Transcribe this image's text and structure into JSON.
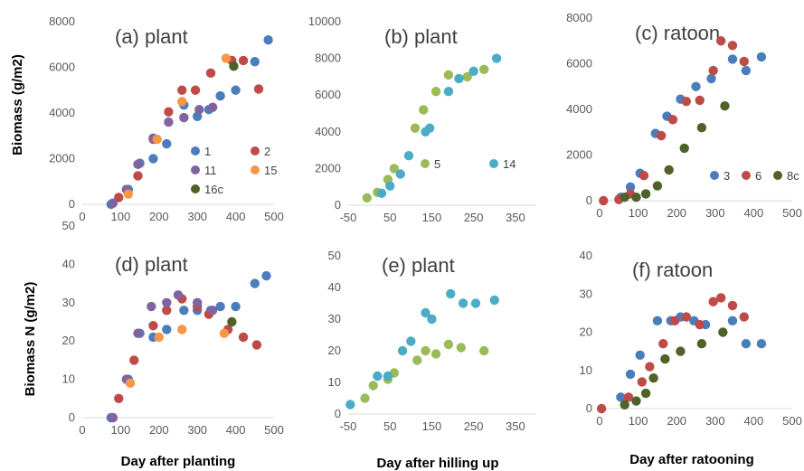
{
  "y_labels": {
    "top": "Biomass (g/m2)",
    "bottom": "Biomass N (g/m2)"
  },
  "x_labels": [
    "Day after planting",
    "Day after hilling up",
    "Day after ratooning"
  ],
  "colors": {
    "1": "#4a7ebb",
    "2": "#be4b48",
    "11": "#8064a2",
    "15": "#f79646",
    "16c": "#4f6228",
    "5": "#9bbb59",
    "14": "#4bacc6",
    "3": "#4a7ebb",
    "6": "#be4b48",
    "8c": "#4f6228"
  },
  "chart_data": [
    {
      "type": "scatter",
      "title": "(a) plant",
      "xlim": [
        0,
        500
      ],
      "ylim": [
        0,
        8000
      ],
      "xticks": [
        "0",
        "100",
        "200",
        "300",
        "400",
        "500"
      ],
      "yticks": [
        "0",
        "2000",
        "4000",
        "6000",
        "8000"
      ],
      "legend": [
        "1",
        "2",
        "11",
        "15",
        "16c"
      ],
      "series": [
        {
          "name": "1",
          "points": [
            [
              75,
              0
            ],
            [
              120,
              650
            ],
            [
              150,
              1800
            ],
            [
              185,
              2000
            ],
            [
              220,
              2650
            ],
            [
              265,
              4350
            ],
            [
              300,
              3850
            ],
            [
              330,
              4150
            ],
            [
              360,
              4750
            ],
            [
              400,
              5000
            ],
            [
              450,
              6250
            ],
            [
              485,
              7200
            ]
          ]
        },
        {
          "name": "2",
          "points": [
            [
              95,
              300
            ],
            [
              145,
              1250
            ],
            [
              185,
              2850
            ],
            [
              225,
              4050
            ],
            [
              260,
              5000
            ],
            [
              295,
              5000
            ],
            [
              335,
              5750
            ],
            [
              390,
              6300
            ],
            [
              420,
              6300
            ],
            [
              460,
              5050
            ]
          ]
        },
        {
          "name": "11",
          "points": [
            [
              80,
              50
            ],
            [
              115,
              650
            ],
            [
              145,
              1750
            ],
            [
              185,
              2900
            ],
            [
              225,
              3600
            ],
            [
              265,
              3800
            ],
            [
              305,
              4150
            ],
            [
              340,
              4250
            ]
          ]
        },
        {
          "name": "15",
          "points": [
            [
              120,
              450
            ],
            [
              195,
              2850
            ],
            [
              260,
              4500
            ],
            [
              375,
              6400
            ]
          ]
        },
        {
          "name": "16c",
          "points": [
            [
              395,
              6050
            ]
          ]
        }
      ]
    },
    {
      "type": "scatter",
      "title": "(b) plant",
      "xlim": [
        -50,
        400
      ],
      "ylim": [
        0,
        10000
      ],
      "xticks": [
        "-50",
        "50",
        "150",
        "250",
        "350"
      ],
      "yticks": [
        "0",
        "2000",
        "4000",
        "6000",
        "8000",
        "10000"
      ],
      "legend": [
        "5",
        "14"
      ],
      "series": [
        {
          "name": "5",
          "points": [
            [
              -5,
              400
            ],
            [
              20,
              700
            ],
            [
              45,
              1400
            ],
            [
              60,
              2000
            ],
            [
              110,
              4200
            ],
            [
              130,
              5200
            ],
            [
              160,
              6200
            ],
            [
              190,
              7100
            ],
            [
              235,
              7000
            ],
            [
              275,
              7400
            ]
          ]
        },
        {
          "name": "14",
          "points": [
            [
              30,
              650
            ],
            [
              50,
              1050
            ],
            [
              75,
              1700
            ],
            [
              95,
              2700
            ],
            [
              135,
              4000
            ],
            [
              145,
              4200
            ],
            [
              190,
              6200
            ],
            [
              215,
              6900
            ],
            [
              250,
              7300
            ],
            [
              305,
              8000
            ]
          ]
        }
      ]
    },
    {
      "type": "scatter",
      "title": "(c) ratoon",
      "xlim": [
        0,
        500
      ],
      "ylim": [
        0,
        8000
      ],
      "xticks": [
        "0",
        "100",
        "200",
        "300",
        "400",
        "500"
      ],
      "yticks": [
        "0",
        "2000",
        "4000",
        "6000",
        "8000"
      ],
      "legend": [
        "3",
        "6",
        "8c"
      ],
      "series": [
        {
          "name": "3",
          "points": [
            [
              55,
              150
            ],
            [
              80,
              600
            ],
            [
              105,
              1200
            ],
            [
              145,
              2950
            ],
            [
              175,
              3700
            ],
            [
              210,
              4450
            ],
            [
              250,
              5000
            ],
            [
              290,
              5350
            ],
            [
              345,
              6200
            ],
            [
              380,
              5700
            ],
            [
              420,
              6300
            ]
          ]
        },
        {
          "name": "6",
          "points": [
            [
              10,
              0
            ],
            [
              50,
              50
            ],
            [
              80,
              300
            ],
            [
              115,
              1100
            ],
            [
              160,
              2850
            ],
            [
              190,
              3550
            ],
            [
              225,
              4350
            ],
            [
              260,
              4400
            ],
            [
              295,
              5700
            ],
            [
              315,
              7000
            ],
            [
              345,
              6800
            ],
            [
              375,
              6100
            ]
          ]
        },
        {
          "name": "8c",
          "points": [
            [
              65,
              150
            ],
            [
              95,
              150
            ],
            [
              120,
              300
            ],
            [
              150,
              650
            ],
            [
              180,
              1350
            ],
            [
              220,
              2300
            ],
            [
              265,
              3200
            ],
            [
              325,
              4150
            ]
          ]
        }
      ]
    },
    {
      "type": "scatter",
      "title": "(d) plant",
      "xlim": [
        0,
        500
      ],
      "ylim": [
        0,
        50
      ],
      "xticks": [
        "0",
        "100",
        "200",
        "300",
        "400",
        "500"
      ],
      "yticks": [
        "0",
        "10",
        "20",
        "30",
        "40",
        "50"
      ],
      "legend": [],
      "series": [
        {
          "name": "1",
          "points": [
            [
              75,
              0
            ],
            [
              120,
              10
            ],
            [
              150,
              22
            ],
            [
              185,
              21
            ],
            [
              220,
              23
            ],
            [
              265,
              28
            ],
            [
              300,
              28
            ],
            [
              335,
              28
            ],
            [
              360,
              29
            ],
            [
              400,
              29
            ],
            [
              450,
              35
            ],
            [
              480,
              37
            ]
          ]
        },
        {
          "name": "2",
          "points": [
            [
              95,
              5
            ],
            [
              135,
              15
            ],
            [
              185,
              24
            ],
            [
              220,
              28
            ],
            [
              260,
              31
            ],
            [
              300,
              29
            ],
            [
              330,
              27
            ],
            [
              380,
              23
            ],
            [
              420,
              21
            ],
            [
              455,
              19
            ]
          ]
        },
        {
          "name": "11",
          "points": [
            [
              80,
              0
            ],
            [
              115,
              10
            ],
            [
              145,
              22
            ],
            [
              180,
              29
            ],
            [
              220,
              30
            ],
            [
              250,
              32
            ],
            [
              300,
              30
            ],
            [
              340,
              28
            ]
          ]
        },
        {
          "name": "15",
          "points": [
            [
              125,
              9
            ],
            [
              200,
              21
            ],
            [
              260,
              23
            ],
            [
              370,
              22
            ]
          ]
        },
        {
          "name": "16c",
          "points": [
            [
              390,
              25
            ]
          ]
        }
      ]
    },
    {
      "type": "scatter",
      "title": "(e) plant",
      "xlim": [
        -50,
        400
      ],
      "ylim": [
        0,
        50
      ],
      "xticks": [
        "-50",
        "50",
        "150",
        "250",
        "350"
      ],
      "yticks": [
        "0",
        "10",
        "20",
        "30",
        "40",
        "50"
      ],
      "legend": [],
      "series": [
        {
          "name": "5",
          "points": [
            [
              -10,
              5
            ],
            [
              10,
              9
            ],
            [
              45,
              11
            ],
            [
              60,
              13
            ],
            [
              115,
              17
            ],
            [
              135,
              20
            ],
            [
              160,
              19
            ],
            [
              190,
              22
            ],
            [
              220,
              21
            ],
            [
              275,
              20
            ]
          ]
        },
        {
          "name": "14",
          "points": [
            [
              -45,
              3
            ],
            [
              20,
              12
            ],
            [
              45,
              12
            ],
            [
              80,
              20
            ],
            [
              100,
              23
            ],
            [
              135,
              32
            ],
            [
              150,
              30
            ],
            [
              195,
              38
            ],
            [
              225,
              35
            ],
            [
              255,
              35
            ],
            [
              300,
              36
            ]
          ]
        }
      ]
    },
    {
      "type": "scatter",
      "title": "(f) ratoon",
      "xlim": [
        0,
        500
      ],
      "ylim": [
        0,
        40
      ],
      "xticks": [
        "0",
        "100",
        "200",
        "300",
        "400",
        "500"
      ],
      "yticks": [
        "0",
        "10",
        "20",
        "30",
        "40"
      ],
      "legend": [],
      "series": [
        {
          "name": "3",
          "points": [
            [
              55,
              3
            ],
            [
              80,
              9
            ],
            [
              105,
              14
            ],
            [
              150,
              23
            ],
            [
              185,
              23
            ],
            [
              210,
              24
            ],
            [
              245,
              23
            ],
            [
              275,
              22
            ],
            [
              345,
              23
            ],
            [
              380,
              17
            ],
            [
              420,
              17
            ]
          ]
        },
        {
          "name": "6",
          "points": [
            [
              5,
              0
            ],
            [
              75,
              3
            ],
            [
              110,
              7
            ],
            [
              130,
              11
            ],
            [
              165,
              17
            ],
            [
              195,
              23
            ],
            [
              225,
              24
            ],
            [
              260,
              22
            ],
            [
              295,
              28
            ],
            [
              315,
              29
            ],
            [
              345,
              27
            ],
            [
              375,
              24
            ]
          ]
        },
        {
          "name": "8c",
          "points": [
            [
              65,
              1
            ],
            [
              95,
              2
            ],
            [
              120,
              4
            ],
            [
              140,
              8
            ],
            [
              170,
              13
            ],
            [
              210,
              15
            ],
            [
              265,
              17
            ],
            [
              320,
              20
            ]
          ]
        }
      ]
    }
  ]
}
